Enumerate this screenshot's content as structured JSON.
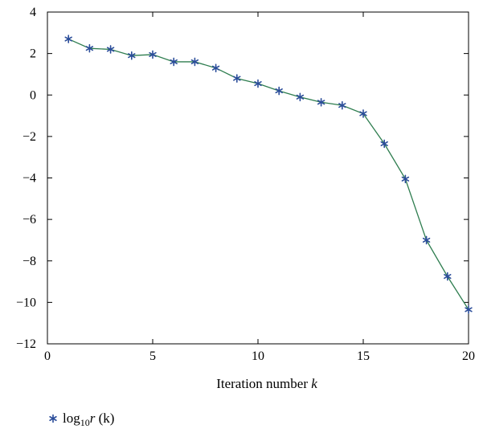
{
  "chart_data": {
    "type": "line",
    "title": "",
    "xlabel_prefix": "Iteration number ",
    "xlabel_var": "k",
    "ylabel": "",
    "xlim": [
      0,
      20
    ],
    "ylim": [
      -12,
      4
    ],
    "xticks": [
      0,
      5,
      10,
      15,
      20
    ],
    "yticks": [
      4,
      2,
      0,
      -2,
      -4,
      -6,
      -8,
      -10,
      -12
    ],
    "ytick_labels": [
      "4",
      "2",
      "0",
      "−2",
      "−4",
      "−6",
      "−8",
      "−10",
      "−12"
    ],
    "grid": false,
    "legend_position": "bottom-left",
    "series": [
      {
        "name": "log₁₀r (k)",
        "legend_parts": {
          "log": "log",
          "sub": "10",
          "var": "r",
          "arg": " (k)"
        },
        "line_color": "#2e7d4f",
        "marker_color": "#2b4d9a",
        "marker": "asterisk",
        "x": [
          1,
          2,
          3,
          4,
          5,
          6,
          7,
          8,
          9,
          10,
          11,
          12,
          13,
          14,
          15,
          16,
          17,
          18,
          19,
          20
        ],
        "y": [
          2.7,
          2.25,
          2.2,
          1.9,
          1.95,
          1.6,
          1.6,
          1.3,
          0.8,
          0.55,
          0.2,
          -0.1,
          -0.35,
          -0.5,
          -0.9,
          -2.35,
          -4.05,
          -7.0,
          -8.75,
          -10.35
        ]
      }
    ]
  }
}
